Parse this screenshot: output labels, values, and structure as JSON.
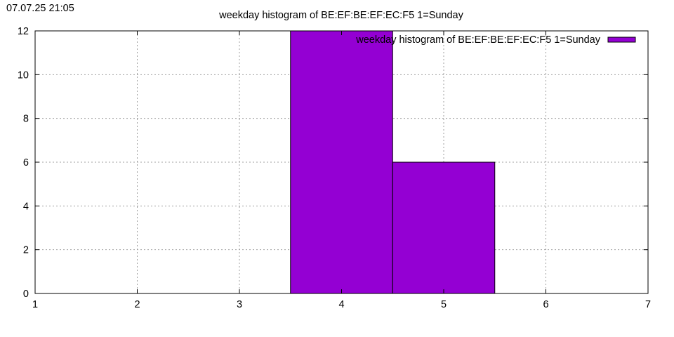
{
  "timestamp": "07.07.25 21:05",
  "chart_data": {
    "type": "bar",
    "title": "weekday histogram of BE:EF:BE:EF:EC:F5 1=Sunday",
    "xlabel": "",
    "ylabel": "",
    "xlim": [
      1,
      7
    ],
    "ylim": [
      0,
      12
    ],
    "xticks": [
      1,
      2,
      3,
      4,
      5,
      6,
      7
    ],
    "yticks": [
      0,
      2,
      4,
      6,
      8,
      10,
      12
    ],
    "bar_width": 1,
    "grid": true,
    "legend_position": "top-right",
    "series": [
      {
        "name": "weekday histogram of BE:EF:BE:EF:EC:F5 1=Sunday",
        "color": "#9400d3",
        "x": [
          4,
          5
        ],
        "values": [
          12,
          6
        ]
      }
    ]
  }
}
